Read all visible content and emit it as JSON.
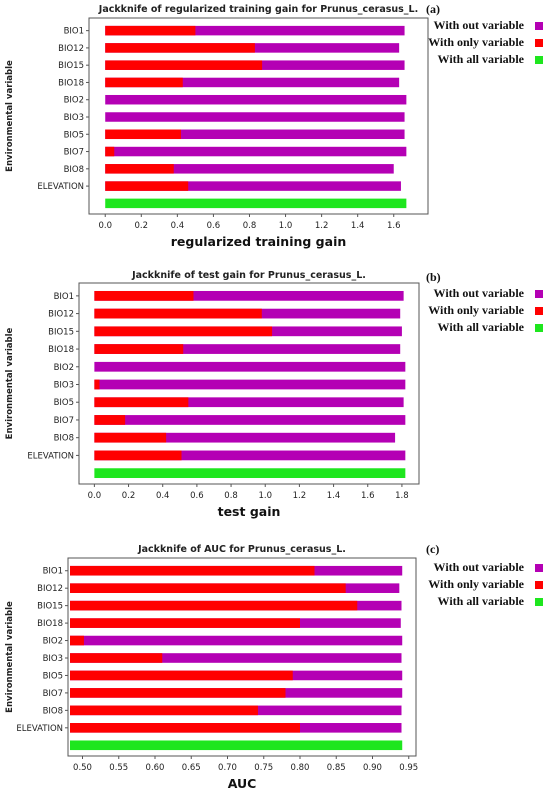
{
  "colors": {
    "without": "#b400b4",
    "only": "#ff0000",
    "all": "#1ee61e",
    "frame": "#555555"
  },
  "chart_data": [
    {
      "type": "bar",
      "orientation": "horizontal",
      "panel_label": "(a)",
      "title": "Jackknife of regularized training gain for Prunus_cerasus_L.",
      "xlabel": "regularized training gain",
      "ylabel": "Environmental variable",
      "xlim": [
        -0.09,
        1.79
      ],
      "xticks": [
        "0.0",
        "0.2",
        "0.4",
        "0.6",
        "0.8",
        "1.0",
        "1.2",
        "1.4",
        "1.6"
      ],
      "categories": [
        "BIO1",
        "BIO12",
        "BIO15",
        "BIO18",
        "BIO2",
        "BIO3",
        "BIO5",
        "BIO7",
        "BIO8",
        "ELEVATION"
      ],
      "series": [
        {
          "name": "With out variable",
          "color_key": "without",
          "values": [
            1.66,
            1.63,
            1.66,
            1.63,
            1.67,
            1.66,
            1.66,
            1.67,
            1.6,
            1.64
          ]
        },
        {
          "name": "With only variable",
          "color_key": "only",
          "values": [
            0.5,
            0.83,
            0.87,
            0.43,
            0.0,
            0.0,
            0.42,
            0.05,
            0.38,
            0.46
          ]
        }
      ],
      "all_variable": {
        "name": "With all variable",
        "color_key": "all",
        "value": 1.67
      }
    },
    {
      "type": "bar",
      "orientation": "horizontal",
      "panel_label": "(b)",
      "title": "Jackknife of test gain for Prunus_cerasus_L.",
      "xlabel": "test gain",
      "ylabel": "Environmental variable",
      "xlim": [
        -0.09,
        1.9
      ],
      "xticks": [
        "0.0",
        "0.2",
        "0.4",
        "0.6",
        "0.8",
        "1.0",
        "1.2",
        "1.4",
        "1.6",
        "1.8"
      ],
      "categories": [
        "BIO1",
        "BIO12",
        "BIO15",
        "BIO18",
        "BIO2",
        "BIO3",
        "BIO5",
        "BIO7",
        "BIO8",
        "ELEVATION"
      ],
      "series": [
        {
          "name": "With out variable",
          "color_key": "without",
          "values": [
            1.81,
            1.79,
            1.8,
            1.79,
            1.82,
            1.82,
            1.81,
            1.82,
            1.76,
            1.82
          ]
        },
        {
          "name": "With only variable",
          "color_key": "only",
          "values": [
            0.58,
            0.98,
            1.04,
            0.52,
            0.0,
            0.03,
            0.55,
            0.18,
            0.42,
            0.51
          ]
        }
      ],
      "all_variable": {
        "name": "With all variable",
        "color_key": "all",
        "value": 1.82
      }
    },
    {
      "type": "bar",
      "orientation": "horizontal",
      "panel_label": "(c)",
      "title": "Jackknife of AUC for Prunus_cerasus_L.",
      "xlabel": "AUC",
      "ylabel": "Environmental variable",
      "xlim": [
        0.48,
        0.96
      ],
      "xticks": [
        "0.50",
        "0.55",
        "0.60",
        "0.65",
        "0.70",
        "0.75",
        "0.80",
        "0.85",
        "0.90",
        "0.95"
      ],
      "categories": [
        "BIO1",
        "BIO12",
        "BIO15",
        "BIO18",
        "BIO2",
        "BIO3",
        "BIO5",
        "BIO7",
        "BIO8",
        "ELEVATION"
      ],
      "series": [
        {
          "name": "With out variable",
          "color_key": "without",
          "values": [
            0.941,
            0.937,
            0.94,
            0.939,
            0.941,
            0.94,
            0.941,
            0.941,
            0.94,
            0.94
          ]
        },
        {
          "name": "With only variable",
          "color_key": "only",
          "values": [
            0.82,
            0.863,
            0.879,
            0.8,
            0.502,
            0.61,
            0.79,
            0.78,
            0.742,
            0.8
          ]
        }
      ],
      "all_variable": {
        "name": "With all variable",
        "color_key": "all",
        "value": 0.941
      }
    }
  ]
}
